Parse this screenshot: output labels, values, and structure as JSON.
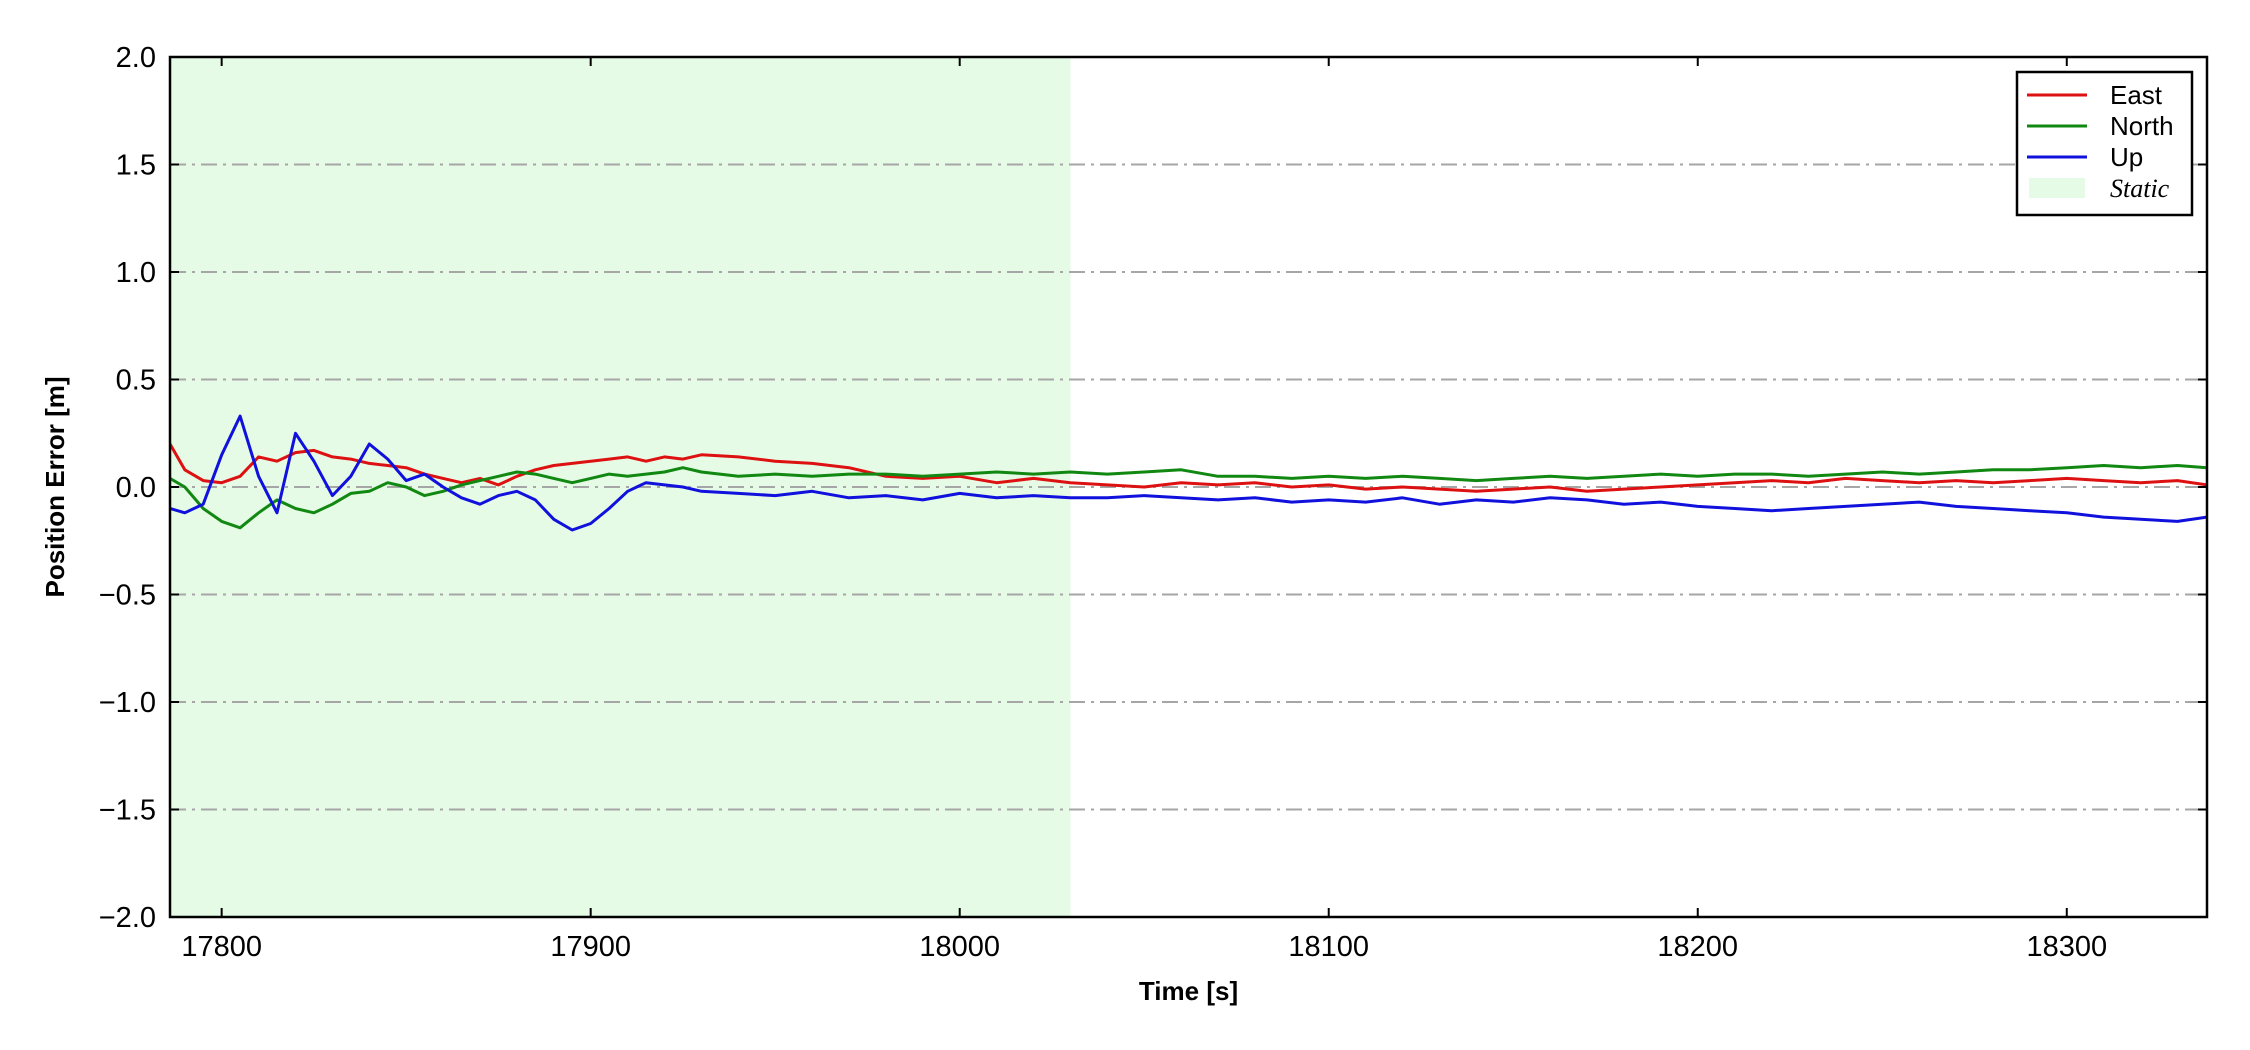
{
  "chart_data": {
    "type": "line",
    "xlabel": "Time [s]",
    "ylabel": "Position Error [m]",
    "xlim": [
      17786,
      18338
    ],
    "ylim": [
      -2.0,
      2.0
    ],
    "xticks": [
      17800,
      17900,
      18000,
      18100,
      18200,
      18300
    ],
    "xtick_labels": [
      "17800",
      "17900",
      "18000",
      "18100",
      "18200",
      "18300"
    ],
    "yticks": [
      -2.0,
      -1.5,
      -1.0,
      -0.5,
      0.0,
      0.5,
      1.0,
      1.5,
      2.0
    ],
    "ytick_labels": [
      "−2.0",
      "−1.5",
      "−1.0",
      "−0.5",
      "0.0",
      "0.5",
      "1.0",
      "1.5",
      "2.0"
    ],
    "grid": "horizontal dash-dot",
    "legend_position": "top-right",
    "shaded_region": {
      "name": "Static",
      "x_start": 17786,
      "x_end": 18030,
      "color": "#e6fbe6"
    },
    "x": [
      17786,
      17790,
      17795,
      17800,
      17805,
      17810,
      17815,
      17820,
      17825,
      17830,
      17835,
      17840,
      17845,
      17850,
      17855,
      17860,
      17865,
      17870,
      17875,
      17880,
      17885,
      17890,
      17895,
      17900,
      17905,
      17910,
      17915,
      17920,
      17925,
      17930,
      17940,
      17950,
      17960,
      17970,
      17980,
      17990,
      18000,
      18010,
      18020,
      18030,
      18040,
      18050,
      18060,
      18070,
      18080,
      18090,
      18100,
      18110,
      18120,
      18130,
      18140,
      18150,
      18160,
      18170,
      18180,
      18190,
      18200,
      18210,
      18220,
      18230,
      18240,
      18250,
      18260,
      18270,
      18280,
      18290,
      18300,
      18310,
      18320,
      18330,
      18338
    ],
    "series": [
      {
        "name": "East",
        "color": "#dd1111",
        "values": [
          0.2,
          0.08,
          0.03,
          0.02,
          0.05,
          0.14,
          0.12,
          0.16,
          0.17,
          0.14,
          0.13,
          0.11,
          0.1,
          0.09,
          0.06,
          0.04,
          0.02,
          0.04,
          0.01,
          0.05,
          0.08,
          0.1,
          0.11,
          0.12,
          0.13,
          0.14,
          0.12,
          0.14,
          0.13,
          0.15,
          0.14,
          0.12,
          0.11,
          0.09,
          0.05,
          0.04,
          0.05,
          0.02,
          0.04,
          0.02,
          0.01,
          0.0,
          0.02,
          0.01,
          0.02,
          0.0,
          0.01,
          -0.01,
          0.0,
          -0.01,
          -0.02,
          -0.01,
          0.0,
          -0.02,
          -0.01,
          0.0,
          0.01,
          0.02,
          0.03,
          0.02,
          0.04,
          0.03,
          0.02,
          0.03,
          0.02,
          0.03,
          0.04,
          0.03,
          0.02,
          0.03,
          0.01
        ]
      },
      {
        "name": "North",
        "color": "#118811",
        "values": [
          0.04,
          0.0,
          -0.1,
          -0.16,
          -0.19,
          -0.12,
          -0.06,
          -0.1,
          -0.12,
          -0.08,
          -0.03,
          -0.02,
          0.02,
          0.0,
          -0.04,
          -0.02,
          0.01,
          0.03,
          0.05,
          0.07,
          0.06,
          0.04,
          0.02,
          0.04,
          0.06,
          0.05,
          0.06,
          0.07,
          0.09,
          0.07,
          0.05,
          0.06,
          0.05,
          0.06,
          0.06,
          0.05,
          0.06,
          0.07,
          0.06,
          0.07,
          0.06,
          0.07,
          0.08,
          0.05,
          0.05,
          0.04,
          0.05,
          0.04,
          0.05,
          0.04,
          0.03,
          0.04,
          0.05,
          0.04,
          0.05,
          0.06,
          0.05,
          0.06,
          0.06,
          0.05,
          0.06,
          0.07,
          0.06,
          0.07,
          0.08,
          0.08,
          0.09,
          0.1,
          0.09,
          0.1,
          0.09
        ]
      },
      {
        "name": "Up",
        "color": "#1111dd",
        "values": [
          -0.1,
          -0.12,
          -0.08,
          0.15,
          0.33,
          0.05,
          -0.12,
          0.25,
          0.12,
          -0.04,
          0.05,
          0.2,
          0.13,
          0.03,
          0.06,
          0.0,
          -0.05,
          -0.08,
          -0.04,
          -0.02,
          -0.06,
          -0.15,
          -0.2,
          -0.17,
          -0.1,
          -0.02,
          0.02,
          0.01,
          0.0,
          -0.02,
          -0.03,
          -0.04,
          -0.02,
          -0.05,
          -0.04,
          -0.06,
          -0.03,
          -0.05,
          -0.04,
          -0.05,
          -0.05,
          -0.04,
          -0.05,
          -0.06,
          -0.05,
          -0.07,
          -0.06,
          -0.07,
          -0.05,
          -0.08,
          -0.06,
          -0.07,
          -0.05,
          -0.06,
          -0.08,
          -0.07,
          -0.09,
          -0.1,
          -0.11,
          -0.1,
          -0.09,
          -0.08,
          -0.07,
          -0.09,
          -0.1,
          -0.11,
          -0.12,
          -0.14,
          -0.15,
          -0.16,
          -0.14
        ]
      }
    ]
  }
}
